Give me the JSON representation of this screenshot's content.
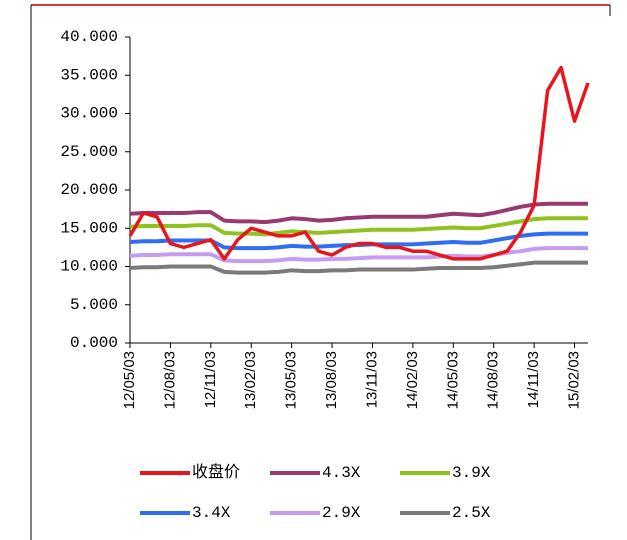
{
  "chart_data": {
    "type": "line",
    "categories": [
      "12/05/03",
      null,
      null,
      "12/08/03",
      null,
      null,
      "12/11/03",
      null,
      null,
      "13/02/03",
      null,
      null,
      "13/05/03",
      null,
      null,
      "13/08/03",
      null,
      null,
      "13/11/03",
      null,
      null,
      "14/02/03",
      null,
      null,
      "14/05/03",
      null,
      null,
      "14/08/03",
      null,
      null,
      "14/11/03",
      null,
      null,
      "15/02/03",
      null
    ],
    "series": [
      {
        "name": "收盘价",
        "color": "#e8161c",
        "values": [
          14,
          17,
          16.5,
          13,
          12.5,
          13,
          13.5,
          11,
          13.5,
          15,
          14.5,
          14,
          14,
          14.5,
          12,
          11.5,
          12.5,
          13,
          13,
          12.5,
          12.5,
          12,
          12,
          11.5,
          11,
          11,
          11,
          11.5,
          12,
          14.5,
          18,
          33,
          36,
          29,
          34
        ]
      },
      {
        "name": "4.3X",
        "color": "#983a6e",
        "values": [
          16.9,
          17,
          17,
          17,
          17,
          17.1,
          17.1,
          16,
          15.9,
          15.9,
          15.8,
          16,
          16.3,
          16.2,
          16,
          16.1,
          16.3,
          16.4,
          16.5,
          16.5,
          16.5,
          16.5,
          16.5,
          16.7,
          16.9,
          16.8,
          16.7,
          17,
          17.4,
          17.8,
          18.1,
          18.2,
          18.2,
          18.2,
          18.2
        ]
      },
      {
        "name": "3.9X",
        "color": "#8ec31f",
        "values": [
          15.2,
          15.3,
          15.3,
          15.3,
          15.3,
          15.4,
          15.4,
          14.4,
          14.3,
          14.3,
          14.2,
          14.4,
          14.6,
          14.5,
          14.4,
          14.5,
          14.6,
          14.7,
          14.8,
          14.8,
          14.8,
          14.8,
          14.9,
          15,
          15.1,
          15,
          15,
          15.3,
          15.6,
          15.9,
          16.2,
          16.3,
          16.3,
          16.3,
          16.3
        ]
      },
      {
        "name": "3.4X",
        "color": "#2f6ef0",
        "values": [
          13.2,
          13.3,
          13.3,
          13.4,
          13.4,
          13.4,
          13.4,
          12.5,
          12.4,
          12.4,
          12.4,
          12.5,
          12.7,
          12.6,
          12.6,
          12.7,
          12.8,
          12.8,
          12.9,
          12.9,
          12.9,
          12.9,
          13,
          13.1,
          13.2,
          13.1,
          13.1,
          13.4,
          13.7,
          14,
          14.2,
          14.3,
          14.3,
          14.3,
          14.3
        ]
      },
      {
        "name": "2.9X",
        "color": "#c59cf0",
        "values": [
          11.4,
          11.5,
          11.5,
          11.6,
          11.6,
          11.6,
          11.6,
          10.8,
          10.7,
          10.7,
          10.7,
          10.8,
          11,
          10.9,
          10.9,
          11,
          11,
          11.1,
          11.2,
          11.2,
          11.2,
          11.2,
          11.2,
          11.3,
          11.4,
          11.3,
          11.3,
          11.5,
          11.8,
          12,
          12.3,
          12.4,
          12.4,
          12.4,
          12.4
        ]
      },
      {
        "name": "2.5X",
        "color": "#7a7a7a",
        "values": [
          9.8,
          9.9,
          9.9,
          10,
          10,
          10,
          10,
          9.3,
          9.2,
          9.2,
          9.2,
          9.3,
          9.5,
          9.4,
          9.4,
          9.5,
          9.5,
          9.6,
          9.6,
          9.6,
          9.6,
          9.6,
          9.7,
          9.8,
          9.8,
          9.8,
          9.8,
          9.9,
          10.1,
          10.3,
          10.5,
          10.5,
          10.5,
          10.5,
          10.5
        ]
      }
    ],
    "ylim": [
      0,
      40
    ],
    "yticks": [
      {
        "value": 0,
        "label": "0.000"
      },
      {
        "value": 5,
        "label": "5.000"
      },
      {
        "value": 10,
        "label": "10.000"
      },
      {
        "value": 15,
        "label": "15.000"
      },
      {
        "value": 20,
        "label": "20.000"
      },
      {
        "value": 25,
        "label": "25.000"
      },
      {
        "value": 30,
        "label": "30.000"
      },
      {
        "value": 35,
        "label": "35.000"
      },
      {
        "value": 40,
        "label": "40.000"
      }
    ]
  }
}
